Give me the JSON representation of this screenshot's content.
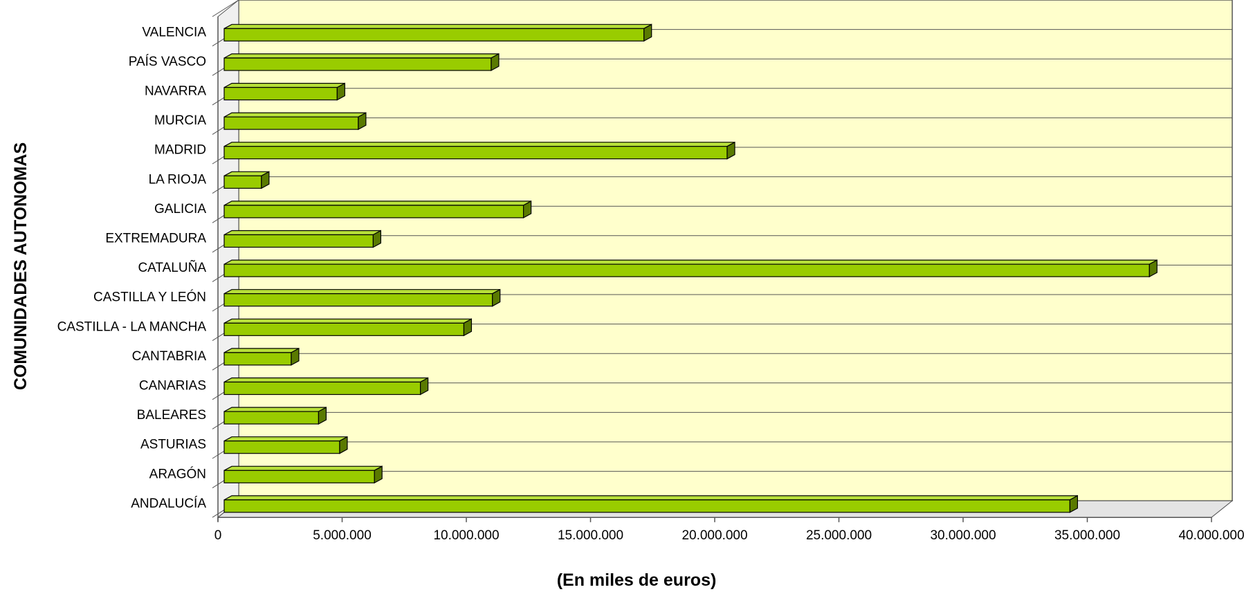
{
  "chart_data": {
    "type": "bar",
    "orientation": "horizontal",
    "three_d": true,
    "categories": [
      "VALENCIA",
      "PAÍS VASCO",
      "NAVARRA",
      "MURCIA",
      "MADRID",
      "LA RIOJA",
      "GALICIA",
      "EXTREMADURA",
      "CATALUÑA",
      "CASTILLA Y LEÓN",
      "CASTILLA - LA MANCHA",
      "CANTABRIA",
      "CANARIAS",
      "BALEARES",
      "ASTURIAS",
      "ARAGÓN",
      "ANDALUCÍA"
    ],
    "values": [
      16900000,
      10750000,
      4550000,
      5400000,
      20250000,
      1500000,
      12050000,
      6000000,
      37250000,
      10800000,
      9650000,
      2700000,
      7900000,
      3800000,
      4650000,
      6050000,
      34050000
    ],
    "x_ticks": [
      "0",
      "5.000.000",
      "10.000.000",
      "15.000.000",
      "20.000.000",
      "25.000.000",
      "30.000.000",
      "35.000.000",
      "40.000.000"
    ],
    "xlim": [
      0,
      40000000
    ],
    "xlabel": "(En miles de euros)",
    "ylabel": "COMUNIDADES AUTONOMAS",
    "grid": "horizontal",
    "legend": "none",
    "colors": {
      "bar_front": "#99cc00",
      "bar_top": "#b8e03a",
      "bar_side": "#5a7a00",
      "bar_outline": "#000000",
      "plot_background": "#ffffcc",
      "wall_side": "#f0f0f0",
      "floor": "#e4e4e4",
      "gridline": "#555555",
      "axis": "#555555"
    }
  }
}
